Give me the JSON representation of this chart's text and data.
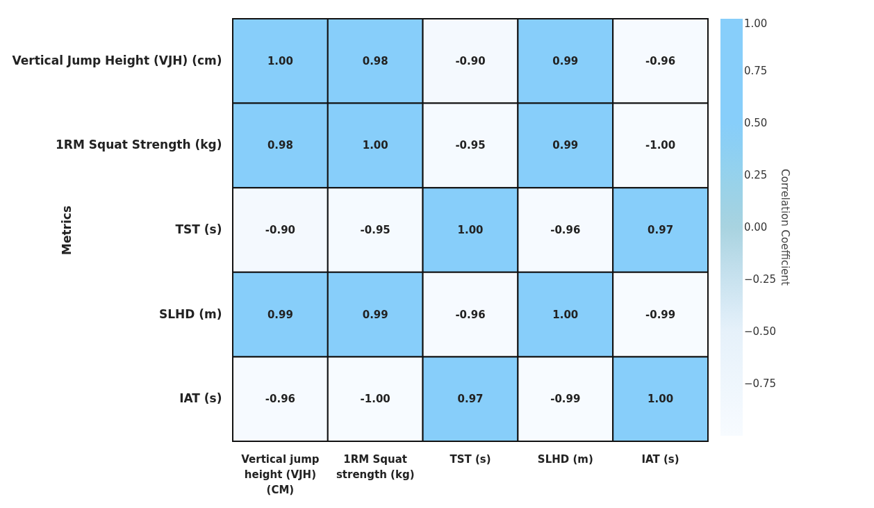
{
  "chart_data": {
    "type": "heatmap",
    "ylabel": "Metrics",
    "clabel": "Correlation Coefficient",
    "categories": [
      "Vertical jump height (VJH) (CM)",
      "1RM Squat strength (kg)",
      "TST (s)",
      "SLHD (m)",
      "IAT (s)"
    ],
    "y_categories": [
      "Vertical Jump Height (VJH) (cm)",
      "1RM Squat Strength (kg)",
      "TST (s)",
      "SLHD (m)",
      "IAT (s)"
    ],
    "cells": [
      [
        1.0,
        0.98,
        -0.9,
        0.99,
        -0.96
      ],
      [
        0.98,
        1.0,
        -0.95,
        0.99,
        -1.0
      ],
      [
        -0.9,
        -0.95,
        1.0,
        -0.96,
        0.97
      ],
      [
        0.99,
        0.99,
        -0.96,
        1.0,
        -0.99
      ],
      [
        -0.96,
        -1.0,
        0.97,
        -0.99,
        1.0
      ]
    ],
    "clim": [
      -1,
      1
    ],
    "cticks": [
      {
        "value": -0.75,
        "label": "−0.75"
      },
      {
        "value": -0.5,
        "label": "−0.50"
      },
      {
        "value": -0.25,
        "label": "−0.25"
      },
      {
        "value": 0,
        "label": "0.00"
      },
      {
        "value": 0.25,
        "label": "0.25"
      },
      {
        "value": 0.5,
        "label": "0.50"
      },
      {
        "value": 0.75,
        "label": "0.75"
      },
      {
        "value": 1,
        "label": "1.00"
      }
    ],
    "cell_labels": [
      [
        "1.00",
        "0.98",
        "-0.90",
        "0.99",
        "-0.96"
      ],
      [
        "0.98",
        "1.00",
        "-0.95",
        "0.99",
        "-1.00"
      ],
      [
        "-0.90",
        "-0.95",
        "1.00",
        "-0.96",
        "0.97"
      ],
      [
        "0.99",
        "0.99",
        "-0.96",
        "1.00",
        "-0.99"
      ],
      [
        "-0.96",
        "-1.00",
        "0.97",
        "-0.99",
        "1.00"
      ]
    ]
  }
}
